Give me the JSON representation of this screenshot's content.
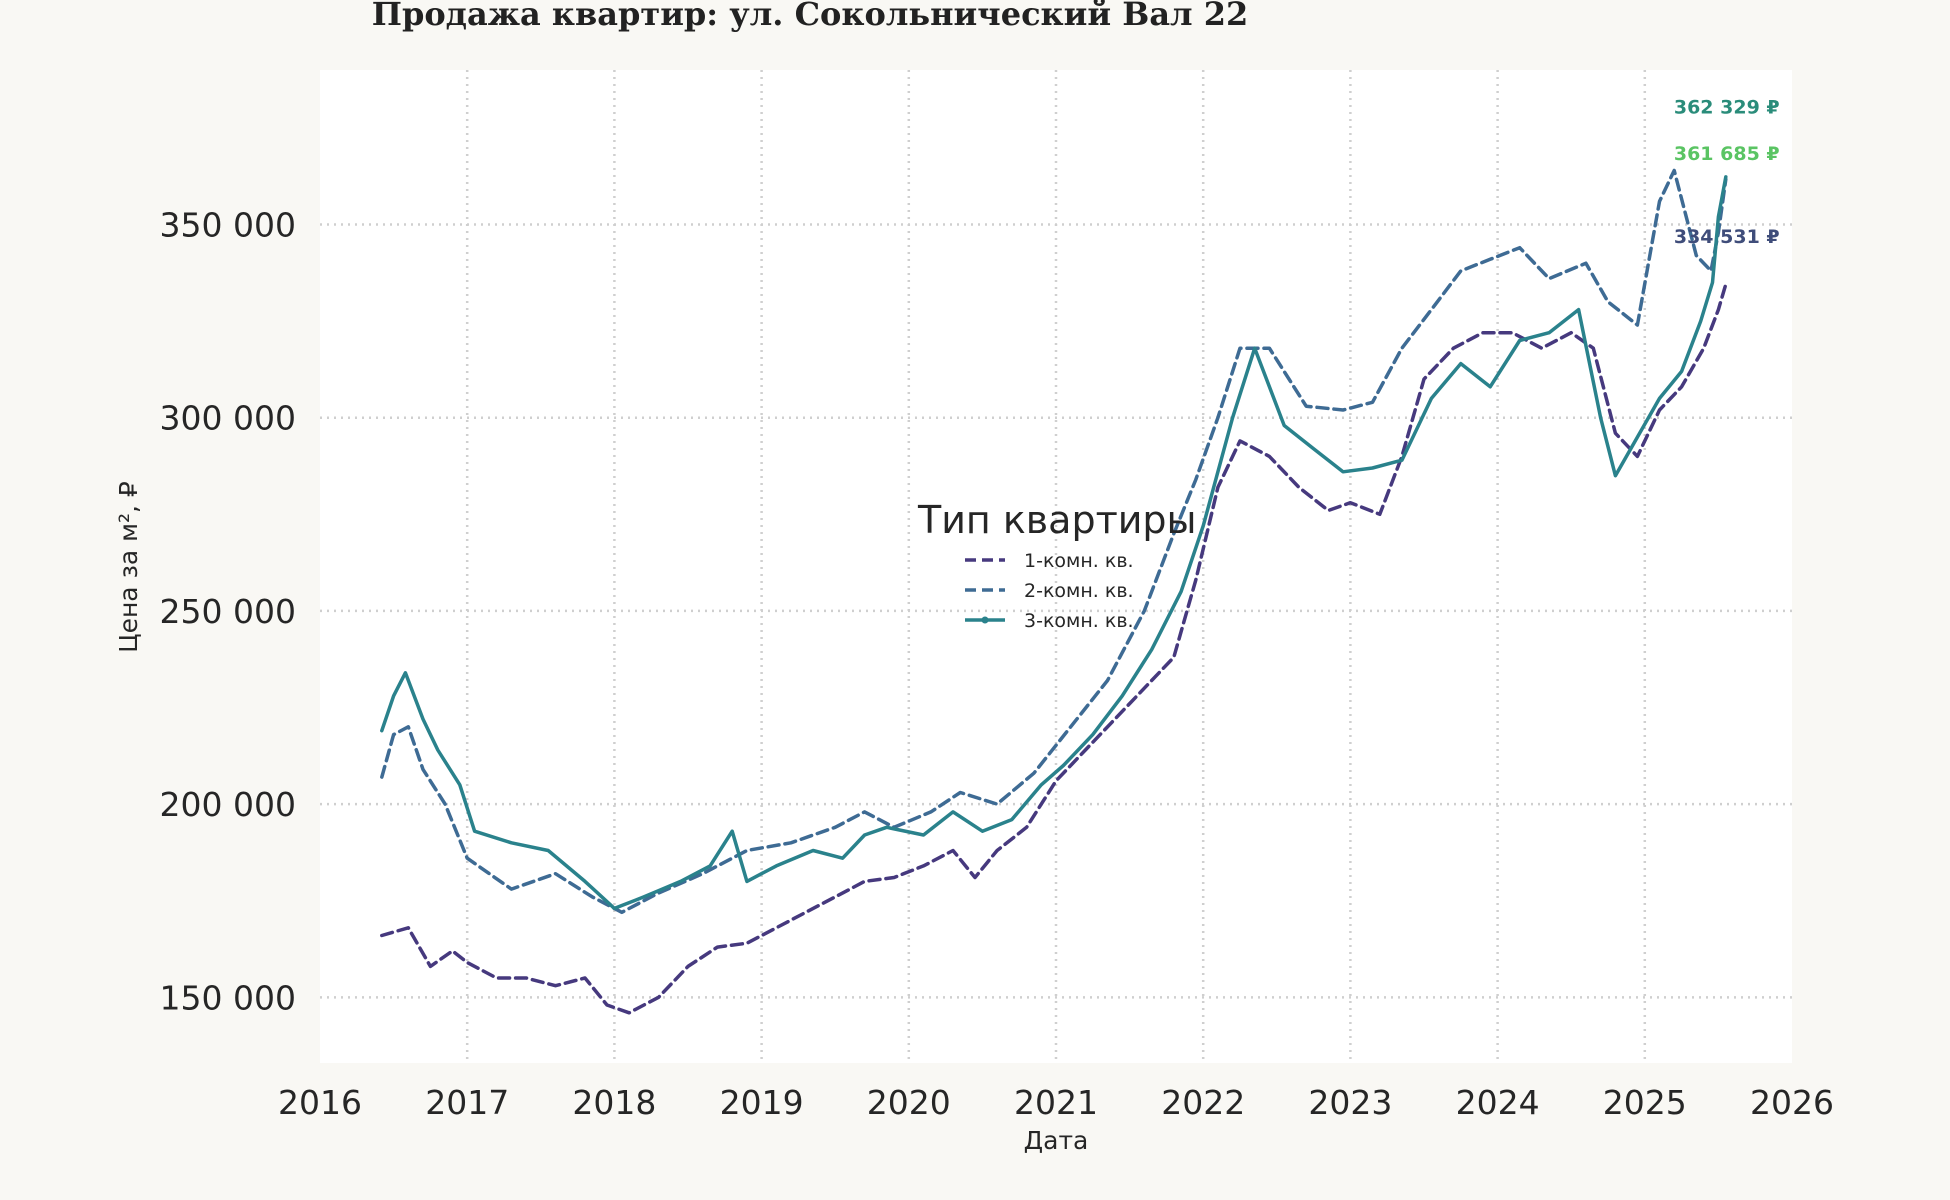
{
  "chart_data": {
    "type": "line",
    "title": "Продажа квартир: ул. Сокольнический Вал 22",
    "xlabel": "Дата",
    "ylabel": "Цена за м², ₽",
    "xlim": [
      2016.0,
      2026.0
    ],
    "ylim": [
      133000,
      390000
    ],
    "x_ticks": [
      "2016",
      "2017",
      "2018",
      "2019",
      "2020",
      "2021",
      "2022",
      "2023",
      "2024",
      "2025",
      "2026"
    ],
    "y_ticks": [
      "150 000",
      "200 000",
      "250 000",
      "300 000",
      "350 000"
    ],
    "grid": true,
    "legend": {
      "title": "Тип квартиры",
      "placement": "center"
    },
    "series": [
      {
        "name": "1-комн. кв.",
        "color": "#46397e",
        "style": "dashed",
        "x": [
          2016.42,
          2016.6,
          2016.75,
          2016.9,
          2017.0,
          2017.2,
          2017.4,
          2017.6,
          2017.8,
          2017.95,
          2018.1,
          2018.3,
          2018.5,
          2018.7,
          2018.9,
          2019.1,
          2019.3,
          2019.5,
          2019.7,
          2019.9,
          2020.1,
          2020.3,
          2020.45,
          2020.6,
          2020.8,
          2021.0,
          2021.2,
          2021.4,
          2021.6,
          2021.8,
          2021.95,
          2022.1,
          2022.25,
          2022.45,
          2022.65,
          2022.85,
          2023.0,
          2023.2,
          2023.35,
          2023.5,
          2023.7,
          2023.9,
          2024.1,
          2024.3,
          2024.5,
          2024.65,
          2024.8,
          2024.95,
          2025.1,
          2025.25,
          2025.4,
          2025.5,
          2025.55
        ],
        "y": [
          166000,
          168000,
          158000,
          162000,
          159000,
          155000,
          155000,
          153000,
          155000,
          148000,
          146000,
          150000,
          158000,
          163000,
          164000,
          168000,
          172000,
          176000,
          180000,
          181000,
          184000,
          188000,
          181000,
          188000,
          194000,
          206000,
          214000,
          222000,
          230000,
          238000,
          258000,
          282000,
          294000,
          290000,
          282000,
          276000,
          278000,
          275000,
          290000,
          310000,
          318000,
          322000,
          322000,
          318000,
          322000,
          318000,
          296000,
          290000,
          302000,
          308000,
          318000,
          328000,
          334531
        ]
      },
      {
        "name": "2-комн. кв.",
        "color": "#3e6b94",
        "style": "dashed",
        "x": [
          2016.42,
          2016.5,
          2016.6,
          2016.7,
          2016.85,
          2017.0,
          2017.3,
          2017.6,
          2017.85,
          2018.05,
          2018.3,
          2018.6,
          2018.9,
          2019.2,
          2019.5,
          2019.7,
          2019.9,
          2020.15,
          2020.35,
          2020.6,
          2020.85,
          2021.1,
          2021.35,
          2021.6,
          2021.8,
          2021.95,
          2022.1,
          2022.25,
          2022.45,
          2022.7,
          2022.95,
          2023.15,
          2023.35,
          2023.55,
          2023.75,
          2023.95,
          2024.15,
          2024.35,
          2024.6,
          2024.75,
          2024.95,
          2025.1,
          2025.2,
          2025.35,
          2025.45,
          2025.5,
          2025.55
        ],
        "y": [
          207000,
          218000,
          220000,
          209000,
          200000,
          186000,
          178000,
          182000,
          176000,
          172000,
          177000,
          182000,
          188000,
          190000,
          194000,
          198000,
          194000,
          198000,
          203000,
          200000,
          208000,
          220000,
          232000,
          250000,
          270000,
          284000,
          300000,
          318000,
          318000,
          303000,
          302000,
          304000,
          318000,
          328000,
          338000,
          341000,
          344000,
          336000,
          340000,
          330000,
          324000,
          356000,
          364000,
          342000,
          338000,
          348000,
          361685
        ]
      },
      {
        "name": "3-комн. кв.",
        "color": "#2a828c",
        "style": "solid",
        "x": [
          2016.42,
          2016.5,
          2016.58,
          2016.7,
          2016.8,
          2016.95,
          2017.05,
          2017.3,
          2017.55,
          2017.8,
          2018.0,
          2018.2,
          2018.45,
          2018.65,
          2018.8,
          2018.9,
          2019.1,
          2019.35,
          2019.55,
          2019.7,
          2019.85,
          2020.1,
          2020.3,
          2020.5,
          2020.7,
          2020.9,
          2021.05,
          2021.25,
          2021.45,
          2021.65,
          2021.85,
          2022.0,
          2022.2,
          2022.35,
          2022.55,
          2022.75,
          2022.95,
          2023.15,
          2023.35,
          2023.55,
          2023.75,
          2023.95,
          2024.15,
          2024.35,
          2024.55,
          2024.7,
          2024.8,
          2024.95,
          2025.1,
          2025.25,
          2025.38,
          2025.46,
          2025.5,
          2025.55
        ],
        "y": [
          219000,
          228000,
          234000,
          222000,
          214000,
          205000,
          193000,
          190000,
          188000,
          180000,
          173000,
          176000,
          180000,
          184000,
          193000,
          180000,
          184000,
          188000,
          186000,
          192000,
          194000,
          192000,
          198000,
          193000,
          196000,
          205000,
          210000,
          218000,
          228000,
          240000,
          255000,
          272000,
          300000,
          318000,
          298000,
          292000,
          286000,
          287000,
          289000,
          305000,
          314000,
          308000,
          320000,
          322000,
          328000,
          300000,
          285000,
          295000,
          305000,
          312000,
          325000,
          335000,
          352000,
          362329
        ]
      }
    ],
    "annotations": [
      {
        "text": "362 329 ₽",
        "series": "3-комн. кв.",
        "color": "#2a8c7a",
        "anchor": [
          2025.55,
          380500
        ]
      },
      {
        "text": "361 685 ₽",
        "series": "2-комн. кв.",
        "color": "#5ac463",
        "anchor": [
          2025.55,
          368500
        ]
      },
      {
        "text": "334 531 ₽",
        "series": "1-комн. кв.",
        "color": "#3f4d7a",
        "anchor": [
          2025.55,
          347000
        ]
      }
    ]
  }
}
